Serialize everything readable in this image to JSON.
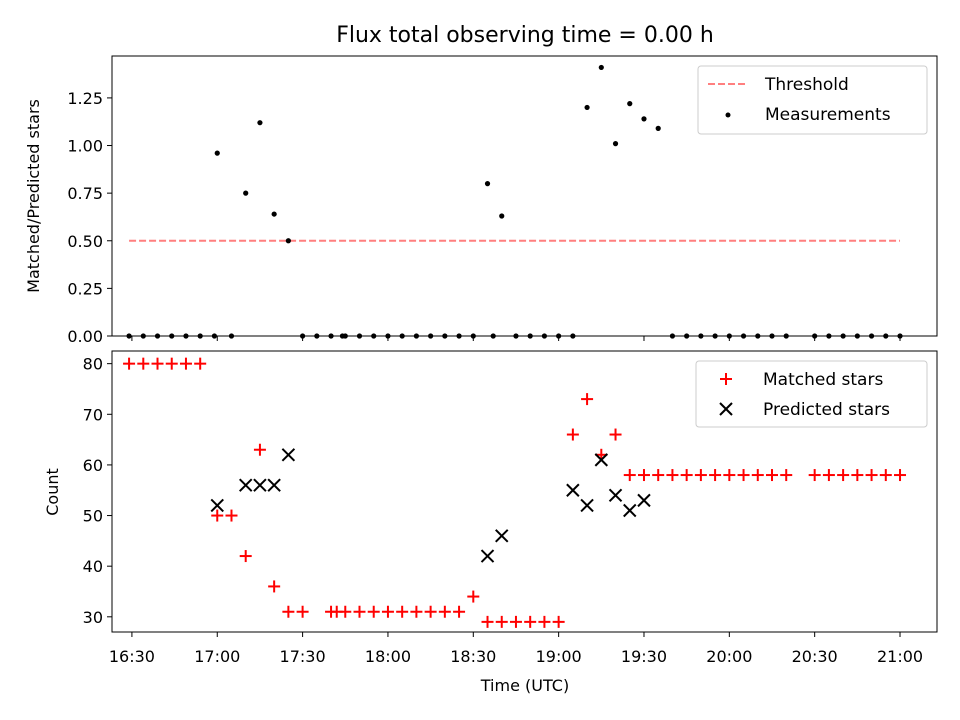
{
  "title": "Flux total observing time = 0.00 h",
  "colors": {
    "threshold": "#ff7f7f",
    "measurement": "#000000",
    "matched": "#ff0000",
    "predicted": "#000000"
  },
  "chart_data": [
    {
      "type": "scatter",
      "ylabel": "Matched/Predicted stars",
      "ylim": [
        0,
        1.47
      ],
      "xlim_minutes": [
        983,
        1273
      ],
      "yticks": [
        0.0,
        0.25,
        0.5,
        0.75,
        1.0,
        1.25
      ],
      "ytick_labels": [
        "0.00",
        "0.25",
        "0.50",
        "0.75",
        "1.00",
        "1.25"
      ],
      "threshold": {
        "name": "Threshold",
        "value": 0.5,
        "x_range": [
          989,
          1260
        ]
      },
      "legend": {
        "location": "top-right",
        "entries": [
          "Threshold",
          "Measurements"
        ]
      },
      "series": [
        {
          "name": "Measurements",
          "x": [
            989,
            994,
            999,
            1004,
            1009,
            1014,
            1019,
            1020,
            1025,
            1030,
            1035,
            1040,
            1045,
            1050,
            1055,
            1060,
            1064,
            1065,
            1070,
            1075,
            1080,
            1085,
            1090,
            1095,
            1100,
            1105,
            1110,
            1115,
            1117,
            1120,
            1125,
            1130,
            1135,
            1140,
            1145,
            1150,
            1155,
            1160,
            1165,
            1170,
            1175,
            1180,
            1185,
            1190,
            1195,
            1200,
            1205,
            1210,
            1215,
            1220,
            1230,
            1235,
            1240,
            1245,
            1250,
            1255,
            1260
          ],
          "y": [
            0,
            0,
            0,
            0,
            0,
            0,
            0,
            0.96,
            0,
            0.75,
            1.12,
            0.64,
            0.5,
            0,
            0,
            0,
            0,
            0,
            0,
            0,
            0,
            0,
            0,
            0,
            0,
            0,
            0,
            0.8,
            0,
            0.63,
            0,
            0,
            0,
            0,
            0,
            1.2,
            1.41,
            1.01,
            1.22,
            1.14,
            1.09,
            0,
            0,
            0,
            0,
            0,
            0,
            0,
            0,
            0,
            0,
            0,
            0,
            0,
            0,
            0,
            0
          ]
        }
      ]
    },
    {
      "type": "scatter",
      "ylabel": "Count",
      "xlabel": "Time (UTC)",
      "ylim": [
        27,
        82.5
      ],
      "xlim_minutes": [
        983,
        1273
      ],
      "yticks": [
        30,
        40,
        50,
        60,
        70,
        80
      ],
      "ytick_labels": [
        "30",
        "40",
        "50",
        "60",
        "70",
        "80"
      ],
      "xticks_minutes": [
        990,
        1020,
        1050,
        1080,
        1110,
        1140,
        1170,
        1200,
        1230,
        1260
      ],
      "xtick_labels": [
        "16:30",
        "17:00",
        "17:30",
        "18:00",
        "18:30",
        "19:00",
        "19:30",
        "20:00",
        "20:30",
        "21:00"
      ],
      "legend": {
        "location": "top-right",
        "entries": [
          "Matched stars",
          "Predicted stars"
        ]
      },
      "series": [
        {
          "name": "Matched stars",
          "marker": "plus",
          "x": [
            989,
            994,
            999,
            1004,
            1009,
            1014,
            1020,
            1025,
            1030,
            1035,
            1040,
            1045,
            1050,
            1060,
            1062,
            1065,
            1070,
            1075,
            1080,
            1085,
            1090,
            1095,
            1100,
            1105,
            1110,
            1115,
            1120,
            1125,
            1130,
            1135,
            1140,
            1145,
            1150,
            1155,
            1160,
            1165,
            1170,
            1175,
            1180,
            1185,
            1190,
            1195,
            1200,
            1205,
            1210,
            1215,
            1220,
            1230,
            1235,
            1240,
            1245,
            1250,
            1255,
            1260
          ],
          "y": [
            80,
            80,
            80,
            80,
            80,
            80,
            50,
            50,
            42,
            63,
            36,
            31,
            31,
            31,
            31,
            31,
            31,
            31,
            31,
            31,
            31,
            31,
            31,
            31,
            34,
            29,
            29,
            29,
            29,
            29,
            29,
            66,
            73,
            62,
            66,
            58,
            58,
            58,
            58,
            58,
            58,
            58,
            58,
            58,
            58,
            58,
            58,
            58,
            58,
            58,
            58,
            58,
            58,
            58
          ]
        },
        {
          "name": "Predicted stars",
          "marker": "x",
          "x": [
            1020,
            1030,
            1035,
            1040,
            1045,
            1115,
            1120,
            1145,
            1150,
            1155,
            1160,
            1165,
            1170
          ],
          "y": [
            52,
            56,
            56,
            56,
            62,
            42,
            46,
            55,
            52,
            61,
            54,
            51,
            53
          ]
        }
      ]
    }
  ]
}
